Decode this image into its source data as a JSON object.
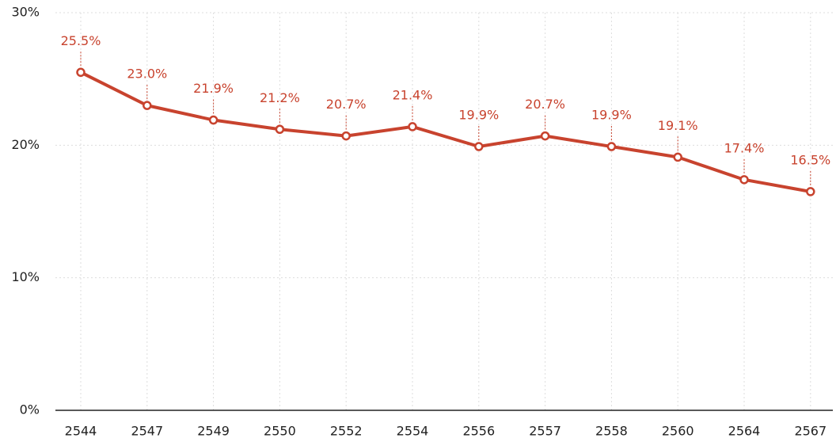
{
  "chart_data": {
    "type": "line",
    "categories": [
      "2544",
      "2547",
      "2549",
      "2550",
      "2552",
      "2554",
      "2556",
      "2557",
      "2558",
      "2560",
      "2564",
      "2567"
    ],
    "series": [
      {
        "color": "#c8432e",
        "values": [
          25.5,
          23.0,
          21.9,
          21.2,
          20.7,
          21.4,
          19.9,
          20.7,
          19.9,
          19.1,
          17.4,
          16.5
        ],
        "value_labels": [
          "25.5%",
          "23.0%",
          "21.9%",
          "21.2%",
          "20.7%",
          "21.4%",
          "19.9%",
          "20.7%",
          "19.9%",
          "19.1%",
          "17.4%",
          "16.5%"
        ]
      }
    ],
    "ylim": [
      0,
      30
    ],
    "yticks": [
      {
        "value": 0,
        "label": "0%"
      },
      {
        "value": 10,
        "label": "10%"
      },
      {
        "value": 20,
        "label": "20%"
      },
      {
        "value": 30,
        "label": "30%"
      }
    ],
    "grid": true
  }
}
